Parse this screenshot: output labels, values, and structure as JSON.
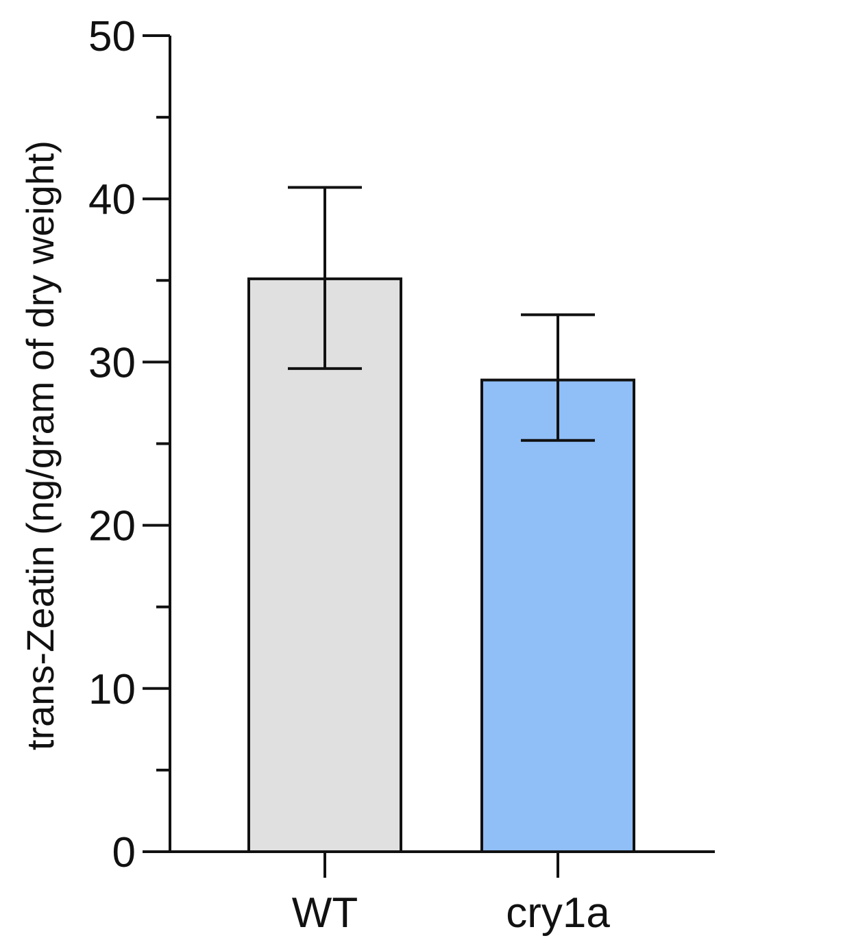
{
  "chart_data": {
    "type": "bar",
    "title": "",
    "xlabel": "",
    "ylabel": "trans-Zeatin (ng/gram of dry weight)",
    "categories": [
      "WT",
      "cry1a"
    ],
    "values": [
      35.1,
      28.9
    ],
    "error_low": [
      29.6,
      25.2
    ],
    "error_high": [
      40.7,
      32.9
    ],
    "colors": [
      "#e0e0e0",
      "#90bef7"
    ],
    "ylim": [
      0,
      50
    ],
    "yticks": [
      0,
      10,
      20,
      30,
      40,
      50
    ],
    "yticks_minor": [
      5,
      15,
      25,
      35,
      45
    ],
    "grid": false,
    "legend": "none"
  }
}
